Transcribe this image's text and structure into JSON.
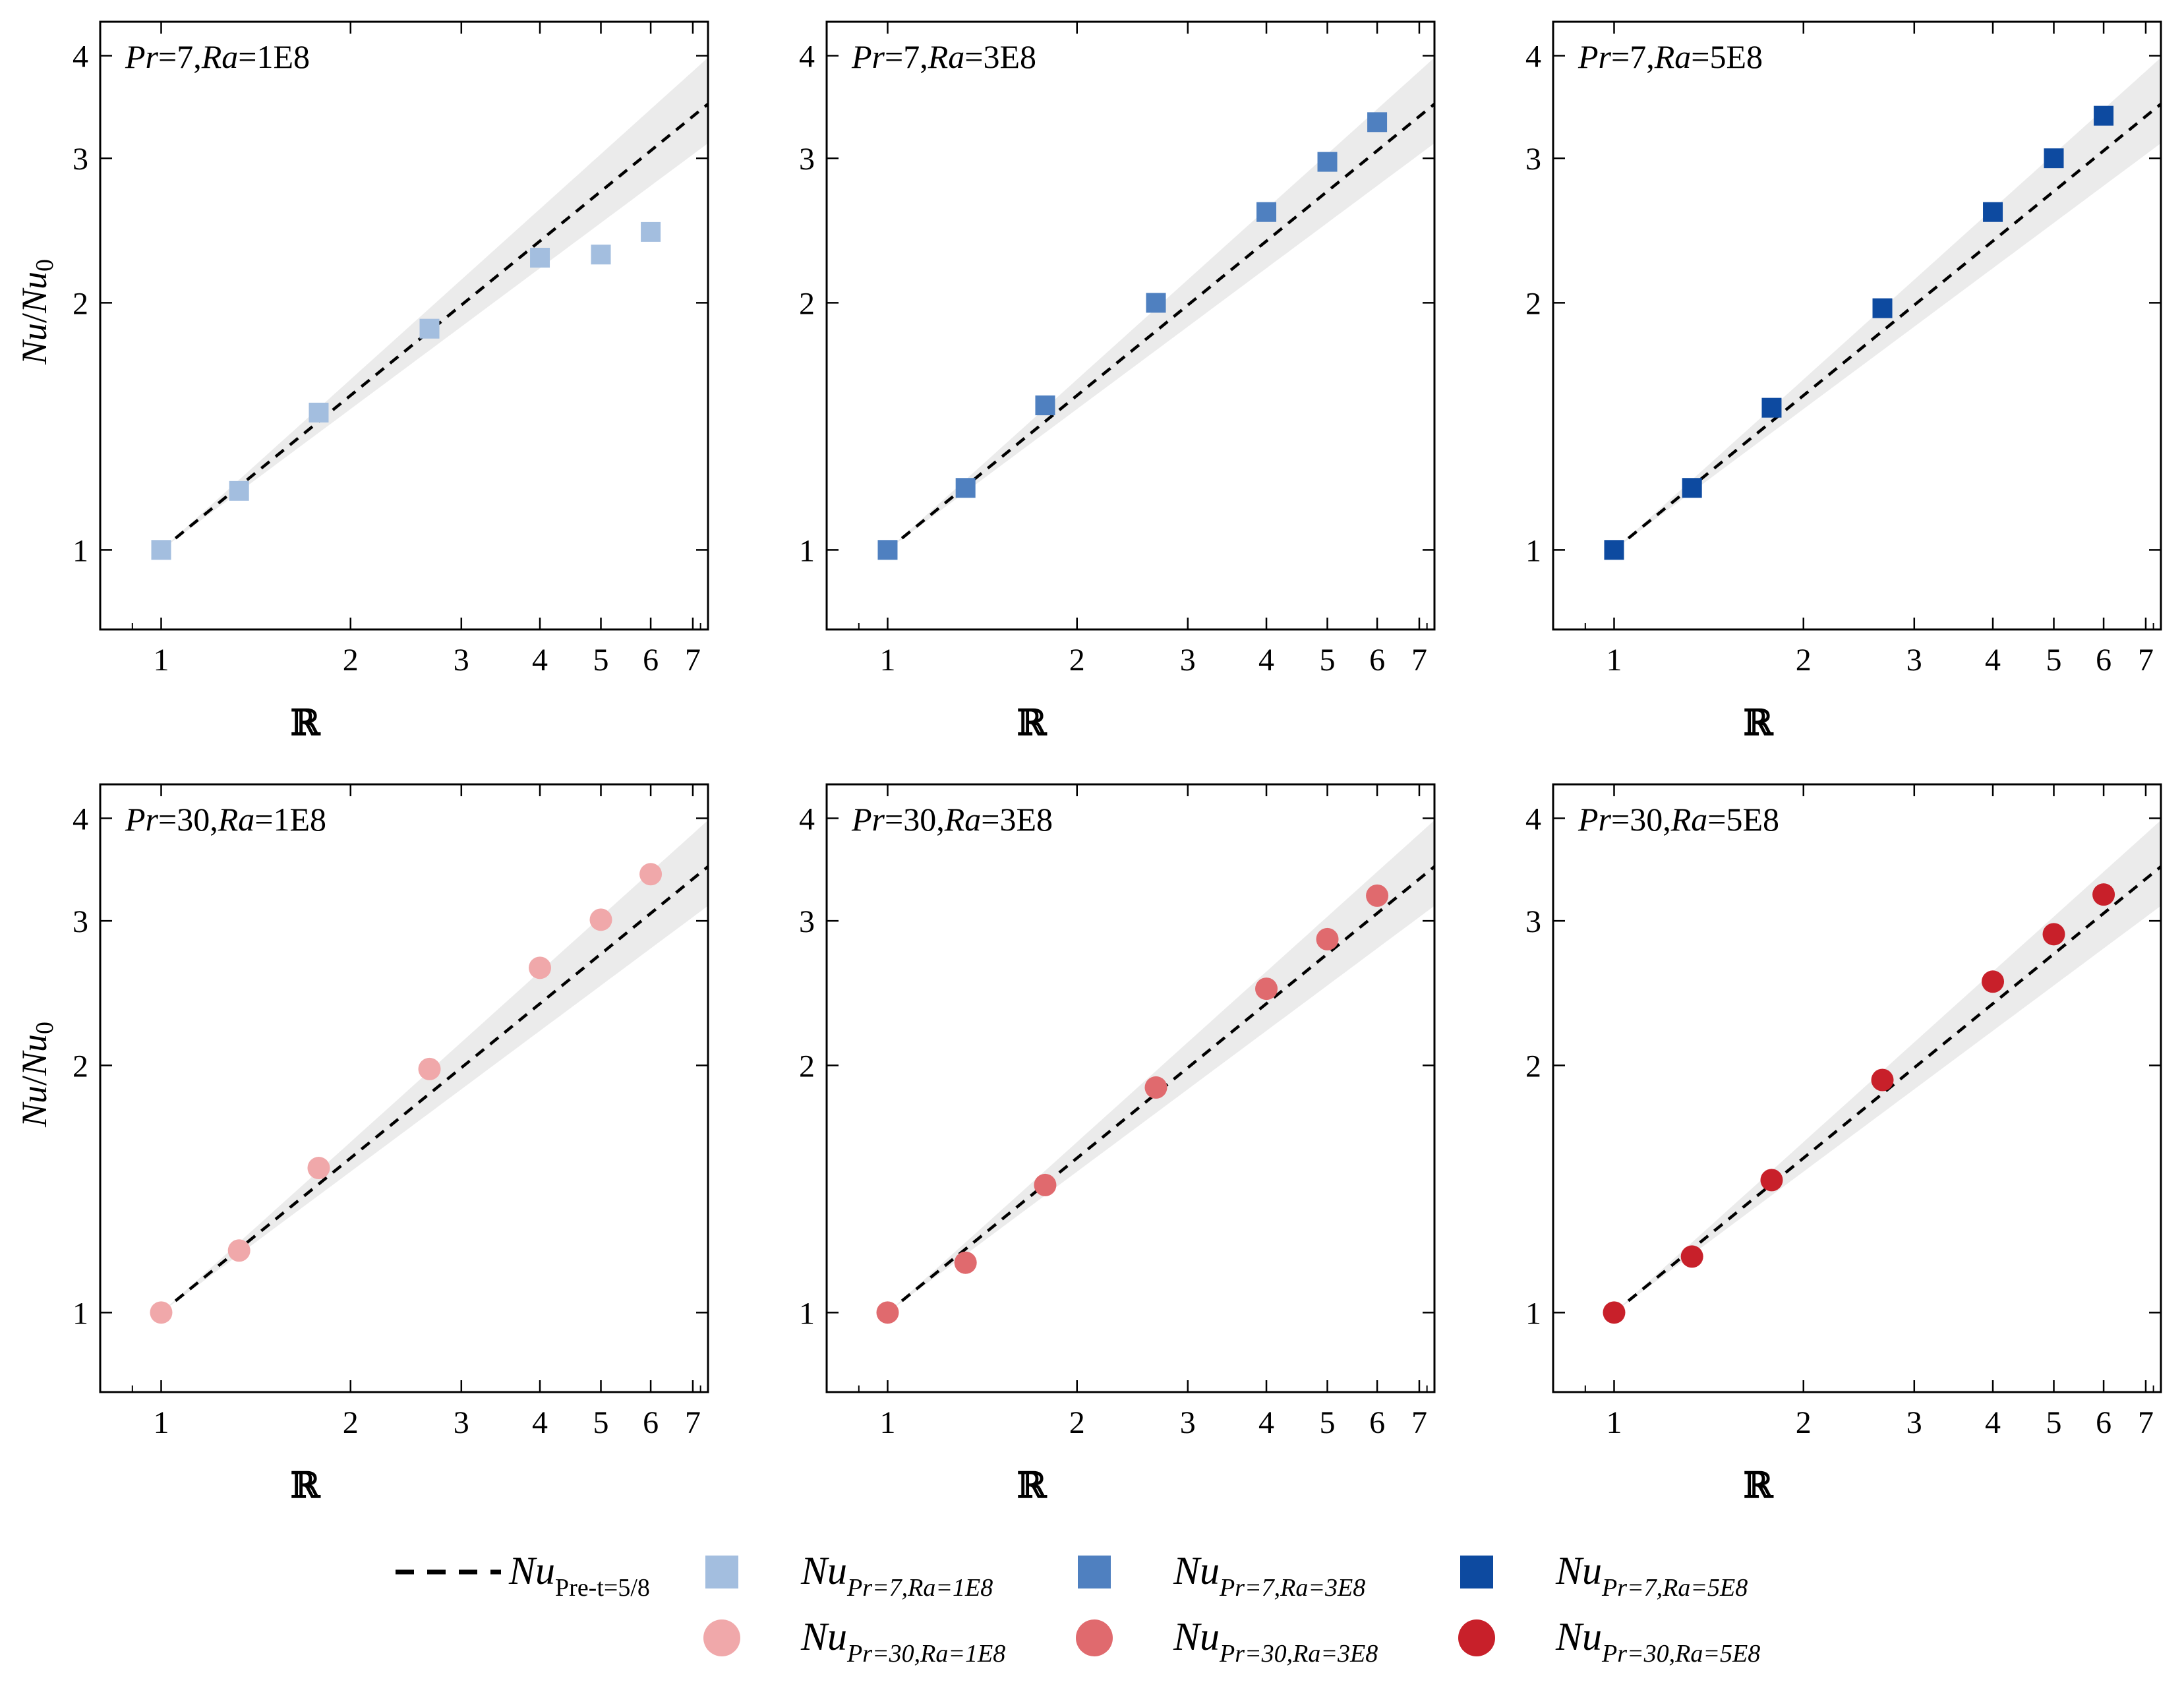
{
  "figure": {
    "xlabel": "ℝ",
    "ylabel_main": "Nu",
    "ylabel_sep": "/",
    "ylabel_sub_base": "Nu",
    "ylabel_sub": "0"
  },
  "chart_data": [
    {
      "type": "scatter",
      "xscale": "log",
      "yscale": "log",
      "xlim": [
        0.8,
        7.4
      ],
      "ylim": [
        0.8,
        4.4
      ],
      "xticks": [
        1,
        2,
        3,
        4,
        5,
        6,
        7
      ],
      "yticks": [
        1,
        2,
        3,
        4
      ],
      "title_parts": [
        "Pr",
        "=7,",
        "Ra",
        "=1E8"
      ],
      "xlabel": "ℝ",
      "ylabel": "Nu/Nu0",
      "marker": "square",
      "color": "#a3bedf",
      "x": [
        1.0,
        1.33,
        1.78,
        2.67,
        4.0,
        5.0,
        6.0
      ],
      "y": [
        1.0,
        1.18,
        1.47,
        1.86,
        2.27,
        2.29,
        2.44
      ],
      "reference": {
        "name": "NuPre-t5/8",
        "exponent": 0.625,
        "band_low_exp": 0.57,
        "band_high_exp": 0.69
      }
    },
    {
      "type": "scatter",
      "xscale": "log",
      "yscale": "log",
      "xlim": [
        0.8,
        7.4
      ],
      "ylim": [
        0.8,
        4.4
      ],
      "xticks": [
        1,
        2,
        3,
        4,
        5,
        6,
        7
      ],
      "yticks": [
        1,
        2,
        3,
        4
      ],
      "title_parts": [
        "Pr",
        "=7,",
        "Ra",
        "=3E8"
      ],
      "xlabel": "ℝ",
      "ylabel": "Nu/Nu0",
      "marker": "square",
      "color": "#4f80c0",
      "x": [
        1.0,
        1.33,
        1.78,
        2.67,
        4.0,
        5.0,
        6.0
      ],
      "y": [
        1.0,
        1.19,
        1.5,
        2.0,
        2.58,
        2.97,
        3.32
      ],
      "reference": {
        "name": "NuPre-t5/8",
        "exponent": 0.625,
        "band_low_exp": 0.57,
        "band_high_exp": 0.69
      }
    },
    {
      "type": "scatter",
      "xscale": "log",
      "yscale": "log",
      "xlim": [
        0.8,
        7.4
      ],
      "ylim": [
        0.8,
        4.4
      ],
      "xticks": [
        1,
        2,
        3,
        4,
        5,
        6,
        7
      ],
      "yticks": [
        1,
        2,
        3,
        4
      ],
      "title_parts": [
        "Pr",
        "=7,",
        "Ra",
        "=5E8"
      ],
      "xlabel": "ℝ",
      "ylabel": "Nu/Nu0",
      "marker": "square",
      "color": "#0d4aa0",
      "x": [
        1.0,
        1.33,
        1.78,
        2.67,
        4.0,
        5.0,
        6.0
      ],
      "y": [
        1.0,
        1.19,
        1.49,
        1.97,
        2.58,
        3.0,
        3.38
      ],
      "reference": {
        "name": "NuPre-t5/8",
        "exponent": 0.625,
        "band_low_exp": 0.57,
        "band_high_exp": 0.69
      }
    },
    {
      "type": "scatter",
      "xscale": "log",
      "yscale": "log",
      "xlim": [
        0.8,
        7.4
      ],
      "ylim": [
        0.8,
        4.4
      ],
      "xticks": [
        1,
        2,
        3,
        4,
        5,
        6,
        7
      ],
      "yticks": [
        1,
        2,
        3,
        4
      ],
      "title_parts": [
        "Pr",
        "=30,",
        "Ra",
        "=1E8"
      ],
      "xlabel": "ℝ",
      "ylabel": "Nu/Nu0",
      "marker": "circle",
      "color": "#f0a8aa",
      "x": [
        1.0,
        1.33,
        1.78,
        2.67,
        4.0,
        5.0,
        6.0
      ],
      "y": [
        1.0,
        1.19,
        1.5,
        1.98,
        2.63,
        3.01,
        3.42
      ],
      "reference": {
        "name": "NuPre-t5/8",
        "exponent": 0.625,
        "band_low_exp": 0.57,
        "band_high_exp": 0.69
      }
    },
    {
      "type": "scatter",
      "xscale": "log",
      "yscale": "log",
      "xlim": [
        0.8,
        7.4
      ],
      "ylim": [
        0.8,
        4.4
      ],
      "xticks": [
        1,
        2,
        3,
        4,
        5,
        6,
        7
      ],
      "yticks": [
        1,
        2,
        3,
        4
      ],
      "title_parts": [
        "Pr",
        "=30,",
        "Ra",
        "=3E8"
      ],
      "xlabel": "ℝ",
      "ylabel": "Nu/Nu0",
      "marker": "circle",
      "color": "#e06a6e",
      "x": [
        1.0,
        1.33,
        1.78,
        2.67,
        4.0,
        5.0,
        6.0
      ],
      "y": [
        1.0,
        1.15,
        1.43,
        1.88,
        2.48,
        2.85,
        3.22
      ],
      "reference": {
        "name": "NuPre-t5/8",
        "exponent": 0.625,
        "band_low_exp": 0.57,
        "band_high_exp": 0.69
      }
    },
    {
      "type": "scatter",
      "xscale": "log",
      "yscale": "log",
      "xlim": [
        0.8,
        7.4
      ],
      "ylim": [
        0.8,
        4.4
      ],
      "xticks": [
        1,
        2,
        3,
        4,
        5,
        6,
        7
      ],
      "yticks": [
        1,
        2,
        3,
        4
      ],
      "title_parts": [
        "Pr",
        "=30,",
        "Ra",
        "=5E8"
      ],
      "xlabel": "ℝ",
      "ylabel": "Nu/Nu0",
      "marker": "circle",
      "color": "#c8202a",
      "x": [
        1.0,
        1.33,
        1.78,
        2.67,
        4.0,
        5.0,
        6.0
      ],
      "y": [
        1.0,
        1.17,
        1.45,
        1.92,
        2.53,
        2.89,
        3.23
      ],
      "reference": {
        "name": "NuPre-t5/8",
        "exponent": 0.625,
        "band_low_exp": 0.57,
        "band_high_exp": 0.69
      }
    }
  ],
  "legend": {
    "entries": [
      {
        "marker": "dashed-line",
        "color": "#000000",
        "main": "Nu",
        "sub": "Pre-t=5/8"
      },
      {
        "marker": "square",
        "color": "#a3bedf",
        "main": "Nu",
        "sub": "Pr=7,Ra=1E8"
      },
      {
        "marker": "square",
        "color": "#4f80c0",
        "main": "Nu",
        "sub": "Pr=7,Ra=3E8"
      },
      {
        "marker": "square",
        "color": "#0d4aa0",
        "main": "Nu",
        "sub": "Pr=7,Ra=5E8"
      },
      {
        "marker": "circle",
        "color": "#f0a8aa",
        "main": "Nu",
        "sub": "Pr=30,Ra=1E8"
      },
      {
        "marker": "circle",
        "color": "#e06a6e",
        "main": "Nu",
        "sub": "Pr=30,Ra=3E8"
      },
      {
        "marker": "circle",
        "color": "#c8202a",
        "main": "Nu",
        "sub": "Pr=30,Ra=5E8"
      }
    ]
  },
  "colors": {
    "band": "#ebebeb",
    "axis": "#000000"
  }
}
